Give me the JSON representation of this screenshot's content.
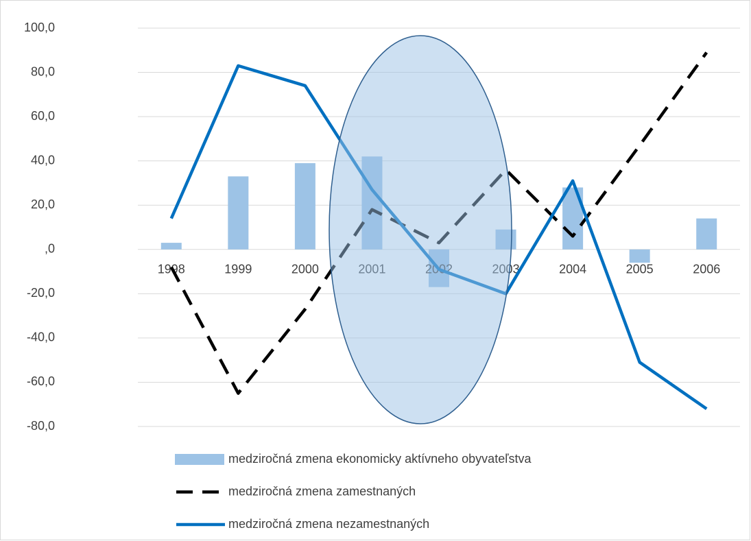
{
  "chart_data": {
    "type": "bar_line",
    "categories": [
      "1998",
      "1999",
      "2000",
      "2001",
      "2002",
      "2003",
      "2004",
      "2005",
      "2006"
    ],
    "series": [
      {
        "name": "medziročná zmena ekonomicky aktívneho obyvateľstva",
        "type": "bar",
        "color": "#9dc3e6",
        "values": [
          3,
          33,
          39,
          42,
          -17,
          9,
          28,
          -6,
          14
        ]
      },
      {
        "name": "medziročná zmena zamestnaných",
        "type": "line",
        "dashed": true,
        "color": "#000000",
        "values": [
          -8,
          -65,
          -27,
          18,
          3,
          36,
          6,
          47,
          89
        ]
      },
      {
        "name": "medziročná zmena nezamestnaných",
        "type": "line",
        "dashed": false,
        "color": "#0070c0",
        "values": [
          14,
          83,
          74,
          27,
          -9,
          -20,
          31,
          -51,
          -72
        ]
      }
    ],
    "ylim": [
      -80,
      100
    ],
    "yticks": [
      {
        "value": -80,
        "label": "-80,0"
      },
      {
        "value": -60,
        "label": "-60,0"
      },
      {
        "value": -40,
        "label": "-40,0"
      },
      {
        "value": -20,
        "label": "-20,0"
      },
      {
        "value": 0,
        "label": ",0"
      },
      {
        "value": 20,
        "label": "20,0"
      },
      {
        "value": 40,
        "label": "40,0"
      },
      {
        "value": 60,
        "label": "60,0"
      },
      {
        "value": 80,
        "label": "80,0"
      },
      {
        "value": 100,
        "label": "100,0"
      }
    ],
    "grid": true,
    "legend": "bottom"
  }
}
